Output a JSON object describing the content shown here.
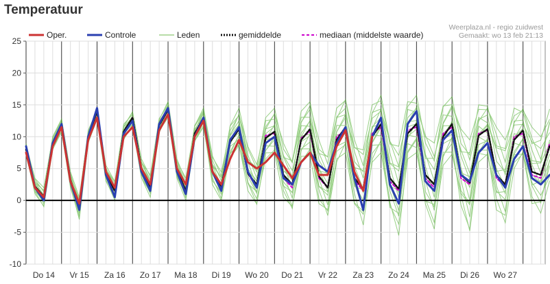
{
  "page": {
    "title": "Temperatuur"
  },
  "credits": {
    "source": "Weerplaza.nl - regio zuidwest",
    "made": "Gemaakt: wo 13 feb 21:13"
  },
  "colors": {
    "oper": "#cc3333",
    "controle": "#2a3fb0",
    "members": "#44aa22",
    "mean": "#111111",
    "median": "#cc00cc",
    "zero": "#000000",
    "grid": "#dddddd",
    "day": "#333333"
  },
  "chart_data": {
    "type": "line",
    "title": "Temperatuur",
    "ylim": [
      -10,
      25
    ],
    "yticks": [
      -10,
      -5,
      0,
      5,
      10,
      15,
      20,
      25
    ],
    "xlim": [
      0,
      14.625
    ],
    "day_labels": [
      "Do 14",
      "Vr 15",
      "Za 16",
      "Zo 17",
      "Ma 18",
      "Di 19",
      "Wo 20",
      "Do 21",
      "Vr 22",
      "Za 23",
      "Zo 24",
      "Ma 25",
      "Di 26",
      "Wo 27"
    ],
    "legend": [
      "Oper.",
      "Controle",
      "Leden",
      "gemiddelde",
      "mediaan (middelste waarde)"
    ],
    "legend_position": "top",
    "grid": true,
    "x_step_days": 0.25,
    "x_start_day": 0.0,
    "series": [
      {
        "name": "Oper.",
        "x_start": 0.0,
        "x_step": 0.25,
        "values": [
          7.5,
          2.0,
          0.5,
          8.5,
          11.5,
          3.0,
          -0.5,
          9.5,
          13.0,
          4.5,
          2.0,
          10.0,
          11.5,
          5.0,
          2.5,
          11.0,
          13.5,
          5.0,
          2.5,
          10.0,
          12.5,
          4.5,
          2.5,
          6.5,
          9.5,
          6.0,
          5.0,
          6.0,
          7.5,
          5.5,
          3.5,
          6.0,
          7.5,
          4.0,
          4.0,
          8.5,
          11.0,
          4.5,
          1.5,
          10.0
        ]
      },
      {
        "name": "Controle",
        "x_start": 0.0,
        "x_step": 0.25,
        "values": [
          8.5,
          2.0,
          0.0,
          9.0,
          12.0,
          3.0,
          -1.5,
          10.0,
          14.5,
          4.0,
          0.5,
          10.5,
          12.5,
          4.5,
          1.5,
          12.0,
          14.5,
          4.5,
          1.0,
          10.0,
          13.0,
          4.5,
          1.5,
          9.5,
          11.5,
          4.5,
          2.0,
          9.0,
          10.0,
          3.5,
          2.5,
          6.0,
          7.5,
          5.5,
          4.5,
          9.0,
          11.5,
          3.5,
          -1.5,
          10.0,
          13.0,
          2.5,
          -0.5,
          12.0,
          14.0,
          3.0,
          1.5,
          9.5,
          11.0,
          4.0,
          3.0,
          7.5,
          9.0,
          4.0,
          2.0,
          6.5,
          8.5,
          3.5,
          2.5,
          4.0
        ]
      },
      {
        "name": "gemiddelde",
        "x_start": 0.0,
        "x_step": 0.25,
        "values": [
          8.0,
          2.2,
          0.6,
          9.0,
          12.0,
          3.2,
          -1.0,
          10.0,
          14.0,
          4.2,
          1.5,
          10.8,
          13.0,
          5.0,
          2.0,
          11.8,
          14.2,
          4.8,
          1.5,
          10.5,
          13.0,
          4.5,
          2.2,
          9.2,
          11.2,
          4.2,
          2.5,
          9.8,
          10.8,
          4.0,
          2.5,
          9.5,
          11.2,
          3.8,
          2.0,
          9.5,
          11.5,
          3.5,
          1.8,
          10.0,
          12.0,
          3.5,
          1.8,
          10.5,
          12.0,
          4.0,
          2.5,
          10.0,
          12.0,
          4.0,
          2.8,
          10.2,
          11.2,
          4.0,
          2.5,
          9.5,
          11.0,
          4.5,
          4.0,
          8.5
        ]
      },
      {
        "name": "mediaan (middelste waarde)",
        "x_start": 0.0,
        "x_step": 0.25,
        "values": [
          8.0,
          2.2,
          0.6,
          9.0,
          12.0,
          3.2,
          -1.0,
          10.0,
          14.0,
          4.2,
          1.5,
          10.8,
          13.0,
          5.0,
          2.0,
          11.8,
          14.2,
          4.8,
          1.5,
          10.5,
          13.0,
          4.5,
          2.2,
          9.2,
          11.2,
          4.2,
          2.0,
          10.2,
          10.5,
          3.5,
          2.0,
          9.8,
          10.8,
          3.5,
          2.0,
          10.0,
          11.0,
          3.2,
          1.5,
          10.5,
          11.5,
          3.0,
          1.5,
          11.0,
          11.5,
          3.5,
          2.0,
          10.5,
          11.5,
          3.5,
          2.5,
          10.5,
          11.0,
          3.5,
          2.2,
          10.0,
          10.5,
          4.0,
          3.5,
          9.0
        ]
      }
    ],
    "members_envelope": {
      "description": "",
      "x_start": 0.0,
      "x_step": 0.25,
      "low": [
        7.0,
        1.0,
        -1.0,
        8.0,
        10.5,
        2.0,
        -3.0,
        9.0,
        12.5,
        3.0,
        0.0,
        9.5,
        11.5,
        3.5,
        0.5,
        10.5,
        13.0,
        3.5,
        0.0,
        9.0,
        11.5,
        2.5,
        0.0,
        6.5,
        8.5,
        1.5,
        -1.0,
        6.5,
        7.5,
        0.5,
        -2.0,
        6.0,
        7.0,
        -0.5,
        -3.0,
        6.0,
        7.5,
        -1.0,
        -4.0,
        6.0,
        7.5,
        -2.0,
        -5.5,
        6.5,
        7.5,
        -1.5,
        -4.5,
        5.5,
        7.0,
        -1.0,
        -5.0,
        6.0,
        6.5,
        -1.5,
        -3.5,
        5.0,
        6.5,
        -0.5,
        -2.0,
        3.0
      ],
      "high": [
        9.0,
        3.5,
        2.0,
        10.0,
        13.0,
        4.5,
        0.5,
        11.0,
        14.5,
        5.5,
        3.0,
        12.0,
        14.0,
        6.5,
        4.0,
        13.0,
        15.5,
        6.5,
        3.5,
        12.0,
        14.5,
        7.0,
        4.5,
        12.0,
        14.5,
        8.5,
        6.0,
        13.0,
        14.5,
        9.0,
        7.0,
        14.0,
        15.5,
        9.5,
        7.5,
        14.5,
        16.0,
        10.0,
        8.0,
        15.0,
        16.5,
        10.5,
        8.5,
        15.5,
        16.5,
        11.0,
        9.0,
        15.0,
        16.5,
        11.5,
        9.5,
        15.0,
        15.5,
        11.5,
        9.5,
        14.5,
        15.0,
        11.5,
        10.0,
        14.5
      ]
    }
  }
}
